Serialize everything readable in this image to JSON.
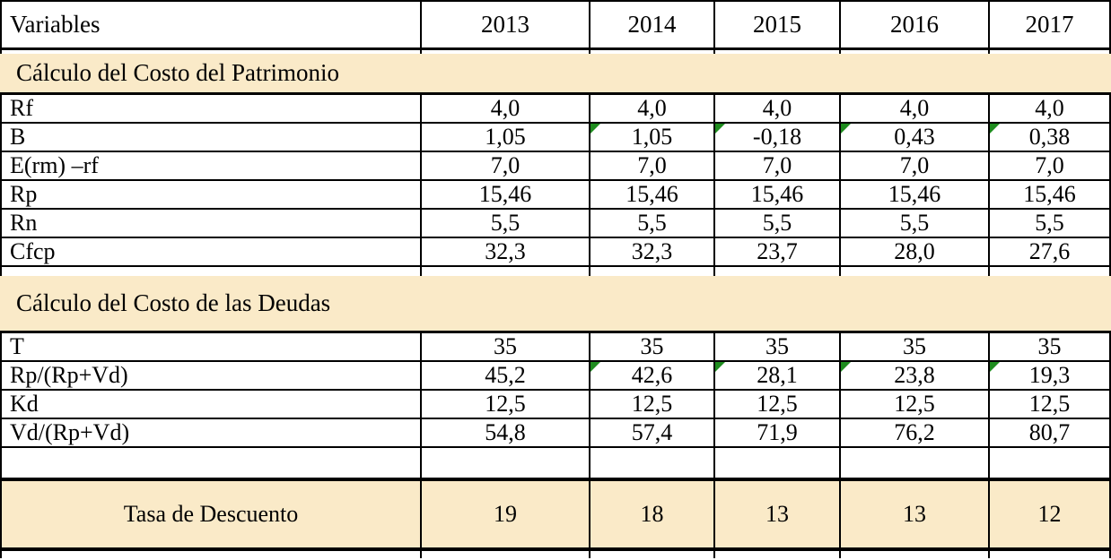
{
  "colors": {
    "section_fill": "#FAEAC8",
    "flag_green": "#1E8C1E",
    "border": "#000000",
    "background": "#FFFFFF"
  },
  "icons": {
    "error_indicator": "green-corner-triangle"
  },
  "table": {
    "header": {
      "label": "Variables",
      "years": [
        "2013",
        "2014",
        "2015",
        "2016",
        "2017"
      ]
    },
    "sections": [
      {
        "title": "Cálculo del Costo del Patrimonio",
        "rows": [
          {
            "label": "Rf",
            "values": [
              "4,0",
              "4,0",
              "4,0",
              "4,0",
              "4,0"
            ]
          },
          {
            "label": "B",
            "values": [
              "1,05",
              "1,05",
              "-0,18",
              "0,43",
              "0,38"
            ],
            "flags": [
              false,
              true,
              true,
              true,
              true
            ]
          },
          {
            "label": "E(rm) –rf",
            "values": [
              "7,0",
              "7,0",
              "7,0",
              "7,0",
              "7,0"
            ]
          },
          {
            "label": "Rp",
            "values": [
              "15,46",
              "15,46",
              "15,46",
              "15,46",
              "15,46"
            ]
          },
          {
            "label": "Rn",
            "values": [
              "5,5",
              "5,5",
              "5,5",
              "5,5",
              "5,5"
            ]
          },
          {
            "label": "Cfcp",
            "values": [
              "32,3",
              "32,3",
              "23,7",
              "28,0",
              "27,6"
            ]
          }
        ]
      },
      {
        "title": "Cálculo del Costo de las Deudas",
        "rows": [
          {
            "label": "T",
            "values": [
              "35",
              "35",
              "35",
              "35",
              "35"
            ]
          },
          {
            "label": "Rp/(Rp+Vd)",
            "values": [
              "45,2",
              "42,6",
              "28,1",
              "23,8",
              "19,3"
            ],
            "flags": [
              false,
              true,
              true,
              true,
              true
            ]
          },
          {
            "label": "Kd",
            "values": [
              "12,5",
              "12,5",
              "12,5",
              "12,5",
              "12,5"
            ]
          },
          {
            "label": "Vd/(Rp+Vd)",
            "values": [
              "54,8",
              "57,4",
              "71,9",
              "76,2",
              "80,7"
            ]
          }
        ]
      }
    ],
    "summary": {
      "label": "Tasa de Descuento",
      "values": [
        "19",
        "18",
        "13",
        "13",
        "12"
      ]
    }
  },
  "chart_data": {
    "type": "table",
    "columns": [
      "Variables",
      "2013",
      "2014",
      "2015",
      "2016",
      "2017"
    ],
    "rows": [
      [
        "Cálculo del Costo del Patrimonio",
        "",
        "",
        "",
        "",
        ""
      ],
      [
        "Rf",
        "4,0",
        "4,0",
        "4,0",
        "4,0",
        "4,0"
      ],
      [
        "B",
        "1,05",
        "1,05",
        "-0,18",
        "0,43",
        "0,38"
      ],
      [
        "E(rm) –rf",
        "7,0",
        "7,0",
        "7,0",
        "7,0",
        "7,0"
      ],
      [
        "Rp",
        "15,46",
        "15,46",
        "15,46",
        "15,46",
        "15,46"
      ],
      [
        "Rn",
        "5,5",
        "5,5",
        "5,5",
        "5,5",
        "5,5"
      ],
      [
        "Cfcp",
        "32,3",
        "32,3",
        "23,7",
        "28,0",
        "27,6"
      ],
      [
        "Cálculo del Costo de las Deudas",
        "",
        "",
        "",
        "",
        ""
      ],
      [
        "T",
        "35",
        "35",
        "35",
        "35",
        "35"
      ],
      [
        "Rp/(Rp+Vd)",
        "45,2",
        "42,6",
        "28,1",
        "23,8",
        "19,3"
      ],
      [
        "Kd",
        "12,5",
        "12,5",
        "12,5",
        "12,5",
        "12,5"
      ],
      [
        "Vd/(Rp+Vd)",
        "54,8",
        "57,4",
        "71,9",
        "76,2",
        "80,7"
      ],
      [
        "Tasa de Descuento",
        "19",
        "18",
        "13",
        "13",
        "12"
      ]
    ]
  }
}
